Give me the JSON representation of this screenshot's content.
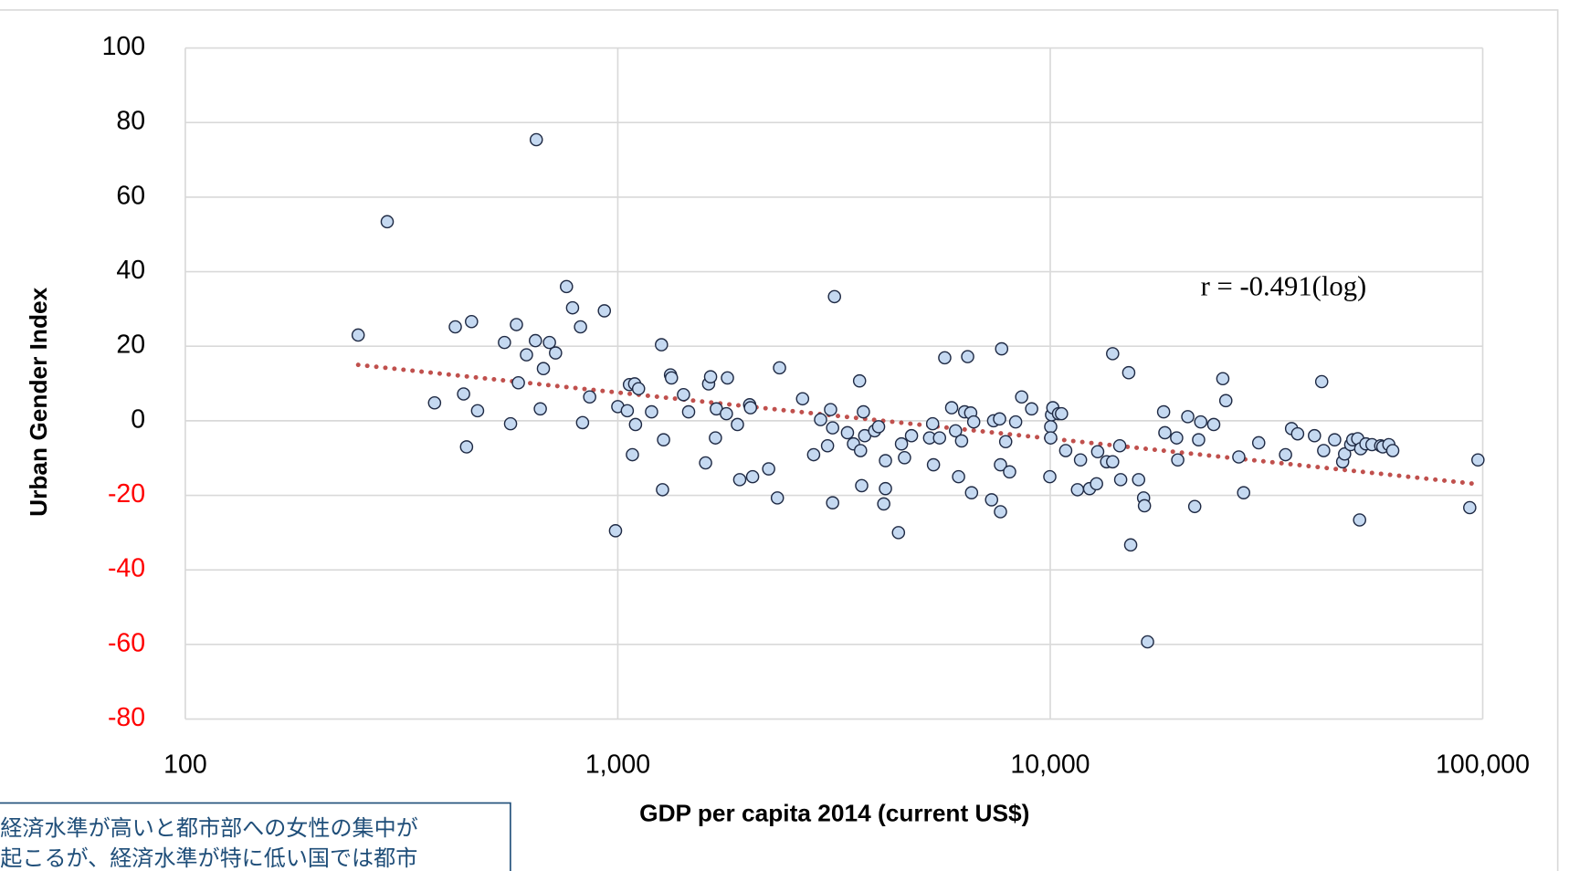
{
  "chart_data": {
    "type": "scatter",
    "xlabel": "GDP per capita 2014 (current US$)",
    "ylabel": "Urban Gender Index",
    "annotation": "r = -0.491(log)",
    "note_lines": [
      "経済水準が高いと都市部への女性の集中が",
      "起こるが、経済水準が特に低い国では都市"
    ],
    "xscale": "log",
    "xlim": [
      100,
      100000
    ],
    "xticks": [
      100,
      {
        "value": 1000,
        "label": "1,000"
      },
      {
        "value": 10000,
        "label": "10,000"
      },
      {
        "value": 100000,
        "label": "100,000"
      }
    ],
    "ylim": [
      -80,
      100
    ],
    "yticks": [
      -80,
      -60,
      -40,
      -20,
      0,
      20,
      40,
      60,
      80,
      100
    ],
    "grid": true,
    "tick_color": "#000000",
    "negative_tick_color": "#ff0000",
    "series": [
      {
        "color": "#c5d9f1",
        "edgecolor": "#1f2a44",
        "x": [
          251,
          293,
          377,
          421,
          440,
          447,
          459,
          474,
          547,
          565,
          583,
          589,
          615,
          645,
          648,
          662,
          673,
          695,
          718,
          761,
          786,
          820,
          829,
          861,
          931,
          988,
          1000,
          1052,
          1064,
          1081,
          1094,
          1099,
          1117,
          1197,
          1262,
          1269,
          1276,
          1324,
          1331,
          1419,
          1458,
          1596,
          1622,
          1639,
          1682,
          1690,
          1783,
          1793,
          1891,
          1914,
          2018,
          2027,
          2050,
          2233,
          2366,
          2339,
          2675,
          2837,
          2944,
          3055,
          3105,
          3139,
          3139,
          3170,
          3397,
          3508,
          3623,
          3642,
          3664,
          3698,
          3724,
          3926,
          4009,
          4159,
          4121,
          4159,
          4457,
          4529,
          4603,
          4777,
          5260,
          5346,
          5370,
          5546,
          5702,
          5916,
          6040,
          6138,
          6237,
          6339,
          6442,
          6547,
          6577,
          6653,
          7317,
          7396,
          7636,
          7672,
          7672,
          7720,
          7888,
          8054,
          8318,
          8588,
          9057,
          9977,
          10024,
          10024,
          10070,
          10139,
          10450,
          10619,
          10857,
          11561,
          11749,
          12330,
          12795,
          12873,
          13500,
          13941,
          13941,
          14477,
          14550,
          15188,
          15346,
          16009,
          16437,
          16514,
          16788,
          18287,
          18410,
          19603,
          19717,
          20796,
          21582,
          22034,
          22284,
          23878,
          25063,
          25467,
          27289,
          28000,
          30340,
          35000,
          36140,
          37330,
          40830,
          42430,
          42880,
          45460,
          47440,
          47940,
          49520,
          50060,
          51400,
          51920,
          52220,
          53700,
          55460,
          58080,
          58750,
          60670,
          61940,
          93330,
          97500
        ],
        "values": [
          23,
          53.4,
          4.8,
          25.2,
          7.2,
          -7,
          26.6,
          2.7,
          21,
          -0.8,
          25.8,
          10.2,
          17.7,
          21.5,
          75.4,
          3.2,
          14,
          21,
          18.2,
          36,
          30.3,
          25.2,
          -0.5,
          6.4,
          29.5,
          -29.5,
          3.8,
          2.7,
          9.7,
          -9.1,
          9.9,
          -1,
          8.6,
          2.4,
          20.4,
          -18.5,
          -5.1,
          12.3,
          11.5,
          7,
          2.4,
          -11.3,
          9.9,
          11.8,
          -4.6,
          3.2,
          1.9,
          11.5,
          -1,
          -15.8,
          4.3,
          3.5,
          -15,
          -12.9,
          14.2,
          -20.7,
          5.9,
          -9.1,
          0.3,
          -6.7,
          3,
          -1.9,
          -22,
          33.3,
          -3.2,
          -6.2,
          10.7,
          -8,
          -17.4,
          2.4,
          -4,
          -2.7,
          -1.6,
          -10.7,
          -22.3,
          -18.2,
          -30,
          -6.2,
          -9.9,
          -4,
          -4.6,
          -0.8,
          -11.8,
          -4.6,
          16.9,
          3.5,
          -2.7,
          -15,
          -5.4,
          2.4,
          17.2,
          2.1,
          -19.3,
          -0.3,
          -21.2,
          0,
          0.5,
          -11.8,
          -24.4,
          19.3,
          -5.6,
          -13.7,
          -0.3,
          6.4,
          3.2,
          -15,
          -1.6,
          -4.6,
          1.6,
          3.5,
          1.9,
          1.9,
          -8,
          -18.5,
          -10.5,
          -18.2,
          -16.9,
          -8.3,
          -11,
          -11,
          18,
          -6.7,
          -15.8,
          12.9,
          -33.3,
          -15.8,
          -20.7,
          -22.8,
          -59.3,
          2.4,
          -3.2,
          -4.6,
          -10.5,
          1.1,
          -23,
          -5.1,
          -0.3,
          -1,
          11.3,
          5.4,
          -9.7,
          -19.3,
          -5.9,
          -9.1,
          -2.1,
          -3.5,
          -4,
          10.5,
          -8,
          -5.1,
          -11,
          -8.9,
          -6.4,
          -5.1,
          -4.8,
          -26.6,
          -7.5,
          -6.2,
          -6.4,
          -6.7,
          -7,
          -6.4,
          -8,
          -23.3,
          -10.5
        ]
      }
    ],
    "trendline": {
      "x": [
        251,
        97500
      ],
      "values": [
        15,
        -17
      ],
      "color": "#c0504d",
      "style": "dotted"
    }
  }
}
